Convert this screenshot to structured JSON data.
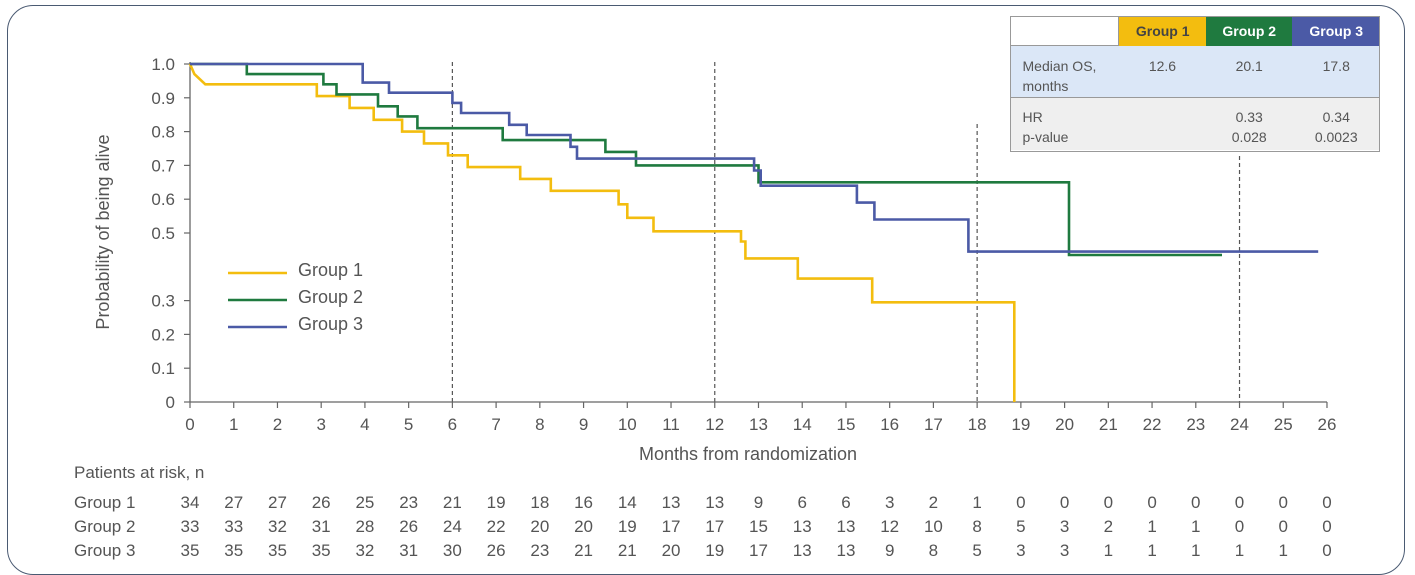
{
  "chart_data": {
    "type": "line",
    "subtype": "kaplan-meier-step",
    "title": "",
    "xlabel": "Months from randomization",
    "ylabel": "Probability of being alive",
    "xlim": [
      0,
      26
    ],
    "ylim": [
      0,
      1.0
    ],
    "x_ticks": [
      0,
      1,
      2,
      3,
      4,
      5,
      6,
      7,
      8,
      9,
      10,
      11,
      12,
      13,
      14,
      15,
      16,
      17,
      18,
      19,
      20,
      21,
      22,
      23,
      24,
      25,
      26
    ],
    "y_ticks": [
      0,
      0.1,
      0.2,
      0.3,
      0.5,
      0.6,
      0.7,
      0.8,
      0.9,
      1.0
    ],
    "y_tick_labels": [
      "0",
      "0.1",
      "0.2",
      "0.3",
      "0.5",
      "0.6",
      "0.7",
      "0.8",
      "0.9",
      "1.0"
    ],
    "reference_lines_x": [
      6,
      12,
      18,
      24
    ],
    "legend_placement": "center-left",
    "series": [
      {
        "name": "Group 1",
        "color": "#f3bd0f",
        "points": [
          [
            0,
            1.0
          ],
          [
            0.1,
            0.97
          ],
          [
            0.35,
            0.94
          ],
          [
            2.9,
            0.94
          ],
          [
            2.9,
            0.905
          ],
          [
            3.65,
            0.905
          ],
          [
            3.65,
            0.87
          ],
          [
            4.2,
            0.87
          ],
          [
            4.2,
            0.835
          ],
          [
            4.85,
            0.835
          ],
          [
            4.85,
            0.8
          ],
          [
            5.35,
            0.8
          ],
          [
            5.35,
            0.765
          ],
          [
            5.9,
            0.765
          ],
          [
            5.9,
            0.73
          ],
          [
            6.35,
            0.73
          ],
          [
            6.35,
            0.695
          ],
          [
            7.55,
            0.695
          ],
          [
            7.55,
            0.66
          ],
          [
            8.25,
            0.66
          ],
          [
            8.25,
            0.625
          ],
          [
            9.8,
            0.625
          ],
          [
            9.8,
            0.585
          ],
          [
            10.0,
            0.585
          ],
          [
            10.0,
            0.545
          ],
          [
            10.6,
            0.545
          ],
          [
            10.6,
            0.505
          ],
          [
            12.6,
            0.505
          ],
          [
            12.6,
            0.475
          ],
          [
            12.7,
            0.475
          ],
          [
            12.7,
            0.425
          ],
          [
            13.9,
            0.425
          ],
          [
            13.9,
            0.365
          ],
          [
            15.6,
            0.365
          ],
          [
            15.6,
            0.295
          ],
          [
            18.85,
            0.295
          ],
          [
            18.85,
            0.0
          ]
        ]
      },
      {
        "name": "Group 2",
        "color": "#1f7a3f",
        "points": [
          [
            0,
            1.0
          ],
          [
            1.3,
            1.0
          ],
          [
            1.3,
            0.97
          ],
          [
            3.05,
            0.97
          ],
          [
            3.05,
            0.94
          ],
          [
            3.35,
            0.94
          ],
          [
            3.35,
            0.91
          ],
          [
            4.3,
            0.91
          ],
          [
            4.3,
            0.875
          ],
          [
            4.75,
            0.875
          ],
          [
            4.75,
            0.845
          ],
          [
            5.2,
            0.845
          ],
          [
            5.2,
            0.81
          ],
          [
            7.15,
            0.81
          ],
          [
            7.15,
            0.775
          ],
          [
            9.5,
            0.775
          ],
          [
            9.5,
            0.74
          ],
          [
            10.2,
            0.74
          ],
          [
            10.2,
            0.7
          ],
          [
            13.0,
            0.7
          ],
          [
            13.0,
            0.65
          ],
          [
            20.1,
            0.65
          ],
          [
            20.1,
            0.435
          ],
          [
            23.6,
            0.435
          ]
        ]
      },
      {
        "name": "Group 3",
        "color": "#4b5aa6",
        "points": [
          [
            0,
            1.0
          ],
          [
            3.95,
            1.0
          ],
          [
            3.95,
            0.945
          ],
          [
            4.55,
            0.945
          ],
          [
            4.55,
            0.915
          ],
          [
            6.0,
            0.915
          ],
          [
            6.0,
            0.885
          ],
          [
            6.2,
            0.885
          ],
          [
            6.2,
            0.855
          ],
          [
            7.3,
            0.855
          ],
          [
            7.3,
            0.82
          ],
          [
            7.7,
            0.82
          ],
          [
            7.7,
            0.79
          ],
          [
            8.7,
            0.79
          ],
          [
            8.7,
            0.755
          ],
          [
            8.85,
            0.755
          ],
          [
            8.85,
            0.72
          ],
          [
            12.9,
            0.72
          ],
          [
            12.9,
            0.685
          ],
          [
            13.05,
            0.685
          ],
          [
            13.05,
            0.64
          ],
          [
            15.25,
            0.64
          ],
          [
            15.25,
            0.59
          ],
          [
            15.65,
            0.59
          ],
          [
            15.65,
            0.54
          ],
          [
            17.8,
            0.54
          ],
          [
            17.8,
            0.445
          ],
          [
            25.8,
            0.445
          ]
        ]
      }
    ],
    "summary_table": {
      "columns": [
        "Group 1",
        "Group 2",
        "Group 3"
      ],
      "rows": [
        {
          "label_lines": [
            "Median OS,",
            "months"
          ],
          "values": [
            [
              "12.6"
            ],
            [
              "20.1"
            ],
            [
              "17.8"
            ]
          ]
        },
        {
          "label_lines": [
            "HR",
            "p-value"
          ],
          "values": [
            [
              ""
            ],
            [
              "0.33",
              "0.028"
            ],
            [
              "0.34",
              "0.0023"
            ]
          ]
        }
      ]
    },
    "risk_table": {
      "title": "Patients at risk, n",
      "rows": [
        {
          "label": "Group 1",
          "counts": [
            34,
            27,
            27,
            26,
            25,
            23,
            21,
            19,
            18,
            16,
            14,
            13,
            13,
            9,
            6,
            6,
            3,
            2,
            1,
            0,
            0,
            0,
            0,
            0,
            0,
            0,
            0
          ]
        },
        {
          "label": "Group 2",
          "counts": [
            33,
            33,
            32,
            31,
            28,
            26,
            24,
            22,
            20,
            20,
            19,
            17,
            17,
            15,
            13,
            13,
            12,
            10,
            8,
            5,
            3,
            2,
            1,
            1,
            0,
            0,
            0
          ]
        },
        {
          "label": "Group 3",
          "counts": [
            35,
            35,
            35,
            35,
            32,
            31,
            30,
            26,
            23,
            21,
            21,
            20,
            19,
            17,
            13,
            13,
            9,
            8,
            5,
            3,
            3,
            1,
            1,
            1,
            1,
            1,
            0
          ]
        }
      ]
    }
  }
}
